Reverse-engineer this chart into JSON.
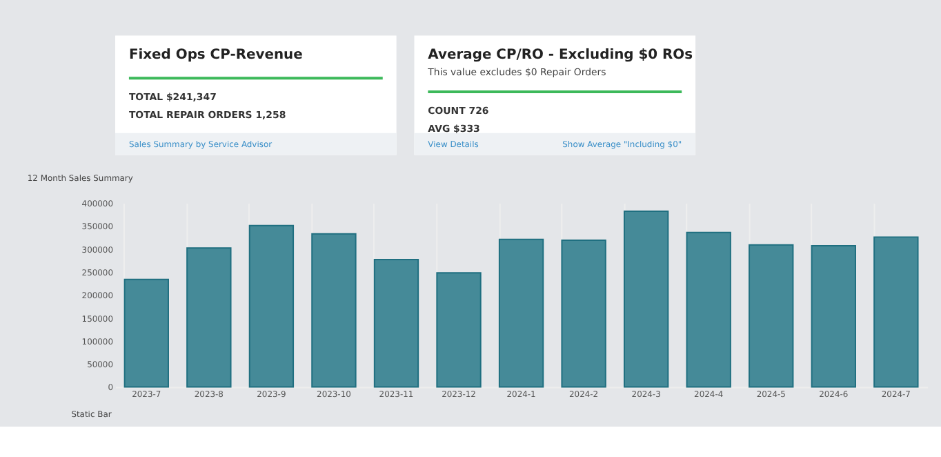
{
  "chart_data": [
    {
      "type": "other",
      "title": "Fixed Ops CP-Revenue",
      "annotations": [
        "TOTAL $241,347",
        "TOTAL REPAIR ORDERS 1,258",
        "Sales Summary by Service Advisor"
      ]
    },
    {
      "type": "other",
      "title": "Average CP/RO - Excluding $0 ROs",
      "subtitle": "This value excludes $0 Repair Orders",
      "annotations": [
        "COUNT 726",
        "AVG $333",
        "View Details",
        "Show Average \"Including $0\""
      ]
    },
    {
      "type": "bar",
      "title": "12 Month Sales Summary",
      "categories": [
        "2023-7",
        "2023-8",
        "2023-9",
        "2023-10",
        "2023-11",
        "2023-12",
        "2024-1",
        "2024-2",
        "2024-3",
        "2024-4",
        "2024-5",
        "2024-6",
        "2024-7"
      ],
      "values": [
        234000,
        302000,
        351000,
        333000,
        277000,
        248000,
        321000,
        319000,
        382000,
        336000,
        309000,
        307000,
        326000
      ],
      "color": "#458a98",
      "ylim": [
        0,
        400000
      ],
      "yticks": [
        0,
        50000,
        100000,
        150000,
        200000,
        250000,
        300000,
        350000,
        400000
      ],
      "grid": "x",
      "annotations": [
        "Static Bar"
      ]
    }
  ]
}
